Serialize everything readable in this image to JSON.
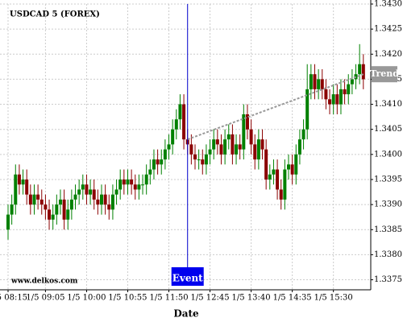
{
  "chart_data": {
    "type": "candlestick",
    "title": "USDCAD 5 (FOREX)",
    "watermark": "www.delkos.com",
    "x_label": "Date",
    "up_color": "#008000",
    "down_color": "#8b0000",
    "grid": true,
    "ylim": [
      1.3373,
      1.343
    ],
    "yticks": [
      {
        "value": 1.343,
        "label": "1.3430"
      },
      {
        "value": 1.3425,
        "label": "1.3425"
      },
      {
        "value": 1.342,
        "label": "1.3420"
      },
      {
        "value": 1.3415,
        "label": "1.3415"
      },
      {
        "value": 1.341,
        "label": "1.3410"
      },
      {
        "value": 1.3405,
        "label": "1.3405"
      },
      {
        "value": 1.34,
        "label": "1.3400"
      },
      {
        "value": 1.3395,
        "label": "1.3395"
      },
      {
        "value": 1.339,
        "label": "1.3390"
      },
      {
        "value": 1.3385,
        "label": "1.3385"
      },
      {
        "value": 1.338,
        "label": "1.3380"
      },
      {
        "value": 1.3375,
        "label": "1.3375"
      }
    ],
    "xticks": [
      {
        "value": 0,
        "label": "1/5 08:15"
      },
      {
        "value": 10,
        "label": "1/5 09:05"
      },
      {
        "value": 21,
        "label": "1/5 10:00"
      },
      {
        "value": 32,
        "label": "1/5 10:55"
      },
      {
        "value": 43,
        "label": "1/5 11:50"
      },
      {
        "value": 54,
        "label": "1/5 12:45"
      },
      {
        "value": 65,
        "label": "1/5 13:40"
      },
      {
        "value": 76,
        "label": "1/5 14:35"
      },
      {
        "value": 87,
        "label": "1/5 15:30"
      }
    ],
    "open": [
      1.3385,
      1.3388,
      1.339,
      1.3396,
      1.3394,
      1.3395,
      1.3392,
      1.339,
      1.3392,
      1.3391,
      1.339,
      1.3389,
      1.3387,
      1.3388,
      1.339,
      1.3391,
      1.3387,
      1.3389,
      1.3391,
      1.3392,
      1.3393,
      1.3394,
      1.3392,
      1.3393,
      1.3391,
      1.339,
      1.3392,
      1.339,
      1.3389,
      1.3392,
      1.3393,
      1.3395,
      1.3394,
      1.3395,
      1.3394,
      1.3393,
      1.3394,
      1.3394,
      1.3396,
      1.3397,
      1.3399,
      1.3398,
      1.3399,
      1.3401,
      1.3402,
      1.3405,
      1.3407,
      1.341,
      1.3403,
      1.3402,
      1.34,
      1.3399,
      1.3399,
      1.3398,
      1.34,
      1.3401,
      1.3403,
      1.3402,
      1.34,
      1.3403,
      1.3404,
      1.34,
      1.3402,
      1.3401,
      1.3408,
      1.3405,
      1.3402,
      1.3399,
      1.3403,
      1.3401,
      1.3395,
      1.3396,
      1.3397,
      1.3393,
      1.3391,
      1.3397,
      1.3398,
      1.3396,
      1.34,
      1.3403,
      1.3405,
      1.3413,
      1.3416,
      1.3413,
      1.3415,
      1.3413,
      1.3411,
      1.341,
      1.3412,
      1.341,
      1.3413,
      1.3412,
      1.3414,
      1.3415,
      1.3416,
      1.3418
    ],
    "high": [
      1.339,
      1.3392,
      1.3398,
      1.3398,
      1.3397,
      1.3397,
      1.3394,
      1.3394,
      1.3394,
      1.3393,
      1.3392,
      1.3391,
      1.339,
      1.3392,
      1.3393,
      1.3393,
      1.3391,
      1.3393,
      1.3394,
      1.3395,
      1.3396,
      1.3396,
      1.3395,
      1.3395,
      1.3393,
      1.3394,
      1.3394,
      1.3392,
      1.3394,
      1.3395,
      1.3397,
      1.3397,
      1.3397,
      1.3397,
      1.3396,
      1.3396,
      1.3396,
      1.3398,
      1.3399,
      1.3401,
      1.3401,
      1.3401,
      1.3403,
      1.3404,
      1.3407,
      1.3409,
      1.3412,
      1.3412,
      1.3405,
      1.3404,
      1.3402,
      1.3401,
      1.3401,
      1.3402,
      1.3403,
      1.3405,
      1.3405,
      1.3404,
      1.3405,
      1.3406,
      1.3406,
      1.3404,
      1.3404,
      1.341,
      1.341,
      1.3407,
      1.3404,
      1.3405,
      1.3405,
      1.3403,
      1.3398,
      1.3399,
      1.3399,
      1.3395,
      1.3399,
      1.34,
      1.34,
      1.3402,
      1.3405,
      1.3407,
      1.3418,
      1.3418,
      1.3418,
      1.3417,
      1.3417,
      1.3415,
      1.3413,
      1.3414,
      1.3414,
      1.3415,
      1.3415,
      1.3416,
      1.3417,
      1.3418,
      1.3422,
      1.342
    ],
    "low": [
      1.3383,
      1.3386,
      1.3388,
      1.3392,
      1.3392,
      1.339,
      1.3388,
      1.3388,
      1.3389,
      1.3388,
      1.3387,
      1.3385,
      1.3385,
      1.3386,
      1.3388,
      1.3385,
      1.3385,
      1.3387,
      1.3389,
      1.339,
      1.3391,
      1.339,
      1.339,
      1.3389,
      1.3388,
      1.3388,
      1.3388,
      1.3387,
      1.3387,
      1.339,
      1.3391,
      1.3392,
      1.3392,
      1.3392,
      1.3391,
      1.3391,
      1.3392,
      1.3392,
      1.3394,
      1.3395,
      1.3396,
      1.3396,
      1.3397,
      1.3399,
      1.34,
      1.3403,
      1.3405,
      1.3401,
      1.34,
      1.3398,
      1.3397,
      1.3397,
      1.3396,
      1.3396,
      1.3398,
      1.3399,
      1.34,
      1.3398,
      1.3398,
      1.3401,
      1.3398,
      1.3398,
      1.3399,
      1.3399,
      1.3403,
      1.34,
      1.3397,
      1.3397,
      1.3399,
      1.3393,
      1.3393,
      1.3394,
      1.3391,
      1.3389,
      1.3389,
      1.3395,
      1.3394,
      1.3394,
      1.3398,
      1.3401,
      1.3403,
      1.3411,
      1.3411,
      1.3411,
      1.3411,
      1.3409,
      1.3408,
      1.3408,
      1.3408,
      1.3408,
      1.341,
      1.341,
      1.3412,
      1.3413,
      1.3414,
      1.3413
    ],
    "close": [
      1.3388,
      1.339,
      1.3396,
      1.3394,
      1.3395,
      1.3392,
      1.339,
      1.3392,
      1.3391,
      1.339,
      1.3389,
      1.3387,
      1.3388,
      1.339,
      1.3391,
      1.3387,
      1.3389,
      1.3391,
      1.3392,
      1.3393,
      1.3394,
      1.3392,
      1.3393,
      1.3391,
      1.339,
      1.3392,
      1.339,
      1.3389,
      1.3392,
      1.3393,
      1.3395,
      1.3394,
      1.3395,
      1.3394,
      1.3393,
      1.3394,
      1.3394,
      1.3396,
      1.3397,
      1.3399,
      1.3398,
      1.3399,
      1.3401,
      1.3402,
      1.3405,
      1.3407,
      1.341,
      1.3403,
      1.3402,
      1.34,
      1.3399,
      1.3399,
      1.3398,
      1.34,
      1.3401,
      1.3403,
      1.3402,
      1.34,
      1.3403,
      1.3404,
      1.34,
      1.3402,
      1.3401,
      1.3408,
      1.3405,
      1.3402,
      1.3399,
      1.3403,
      1.3401,
      1.3395,
      1.3396,
      1.3397,
      1.3393,
      1.3391,
      1.3397,
      1.3398,
      1.3396,
      1.34,
      1.3403,
      1.3405,
      1.3413,
      1.3416,
      1.3413,
      1.3415,
      1.3413,
      1.3411,
      1.341,
      1.3412,
      1.341,
      1.3413,
      1.3412,
      1.3414,
      1.3415,
      1.3416,
      1.3418,
      1.3415
    ],
    "event": {
      "label": "Event",
      "x": 48
    },
    "trend": {
      "label": "Trend",
      "x": [
        48,
        95
      ],
      "y": [
        1.3403,
        1.3416
      ]
    }
  }
}
